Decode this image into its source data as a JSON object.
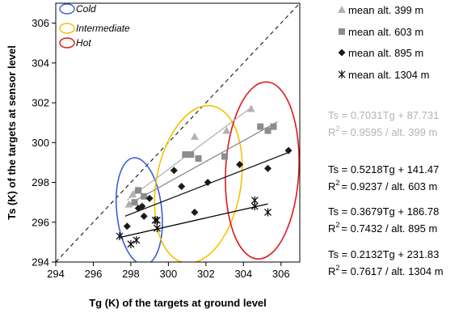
{
  "chart_data": {
    "type": "scatter",
    "xlabel": "Tg (K) of the targets at ground level",
    "ylabel": "Ts (K) of the targets at sensor level",
    "xlim": [
      294,
      307
    ],
    "ylim": [
      294,
      307
    ],
    "x_ticks": [
      294,
      296,
      298,
      300,
      302,
      304,
      306
    ],
    "y_ticks": [
      294,
      296,
      298,
      300,
      302,
      304,
      306
    ],
    "grid": false,
    "legend_position": "right",
    "reference_line": "1:1 dashed",
    "groups": [
      {
        "label": "Cold",
        "color": "#3a5fd9"
      },
      {
        "label": "Intermediate",
        "color": "#f2c200"
      },
      {
        "label": "Hot",
        "color": "#e0161e"
      }
    ],
    "series": [
      {
        "name": "mean alt. 399 m",
        "marker": "triangle",
        "color": "#b3b3b3",
        "slope": 0.7031,
        "intercept": 87.731,
        "equation": "Ts = 0.7031Tg + 87.731",
        "r2_label": "= 0.9595 / alt. 399 m",
        "fit_range": [
          297.8,
          304.5
        ],
        "points": [
          [
            297.9,
            296.9
          ],
          [
            298.1,
            297.4
          ],
          [
            298.3,
            297.6
          ],
          [
            301.4,
            300.3
          ],
          [
            303.1,
            300.6
          ],
          [
            304.4,
            301.7
          ]
        ]
      },
      {
        "name": "mean alt. 603 m",
        "marker": "square",
        "color": "#8c8c8c",
        "slope": 0.5218,
        "intercept": 141.47,
        "equation": "Ts = 0.5218Tg + 141.47",
        "r2_label": "= 0.9237 / alt. 603 m",
        "fit_range": [
          297.9,
          305.8
        ],
        "points": [
          [
            298.2,
            297.0
          ],
          [
            298.4,
            297.6
          ],
          [
            298.7,
            297.3
          ],
          [
            300.9,
            299.4
          ],
          [
            301.2,
            299.4
          ],
          [
            301.6,
            299.2
          ],
          [
            303.0,
            299.3
          ],
          [
            304.9,
            300.8
          ],
          [
            305.3,
            300.6
          ],
          [
            305.6,
            300.8
          ]
        ]
      },
      {
        "name": "mean alt. 895 m",
        "marker": "diamond",
        "color": "#1a1a1a",
        "slope": 0.3679,
        "intercept": 186.78,
        "equation": "Ts = 0.3679Tg + 186.78",
        "r2_label": "= 0.7432 / alt. 895 m",
        "fit_range": [
          297.7,
          306.4
        ],
        "points": [
          [
            297.8,
            295.8
          ],
          [
            298.4,
            296.7
          ],
          [
            298.6,
            296.8
          ],
          [
            298.7,
            296.3
          ],
          [
            299.0,
            297.2
          ],
          [
            300.3,
            298.6
          ],
          [
            300.7,
            297.8
          ],
          [
            301.4,
            296.5
          ],
          [
            302.1,
            298.0
          ],
          [
            303.8,
            298.9
          ],
          [
            305.3,
            298.7
          ],
          [
            306.4,
            299.6
          ]
        ]
      },
      {
        "name": "mean alt. 1304 m",
        "marker": "asterisk",
        "color": "#000000",
        "slope": 0.2132,
        "intercept": 231.83,
        "equation": "Ts = 0.2132Tg + 231.83",
        "r2_label": "= 0.7617 / alt. 1304 m",
        "fit_range": [
          297.4,
          305.3
        ],
        "points": [
          [
            297.4,
            295.3
          ],
          [
            298.0,
            294.9
          ],
          [
            298.3,
            295.1
          ],
          [
            299.3,
            296.1
          ],
          [
            299.4,
            295.7
          ],
          [
            299.4,
            296.1
          ],
          [
            304.6,
            296.8
          ],
          [
            304.6,
            297.1
          ],
          [
            305.3,
            296.5
          ]
        ]
      }
    ]
  },
  "labels": {
    "r2_prefix": "R",
    "r2_exp": "2"
  }
}
